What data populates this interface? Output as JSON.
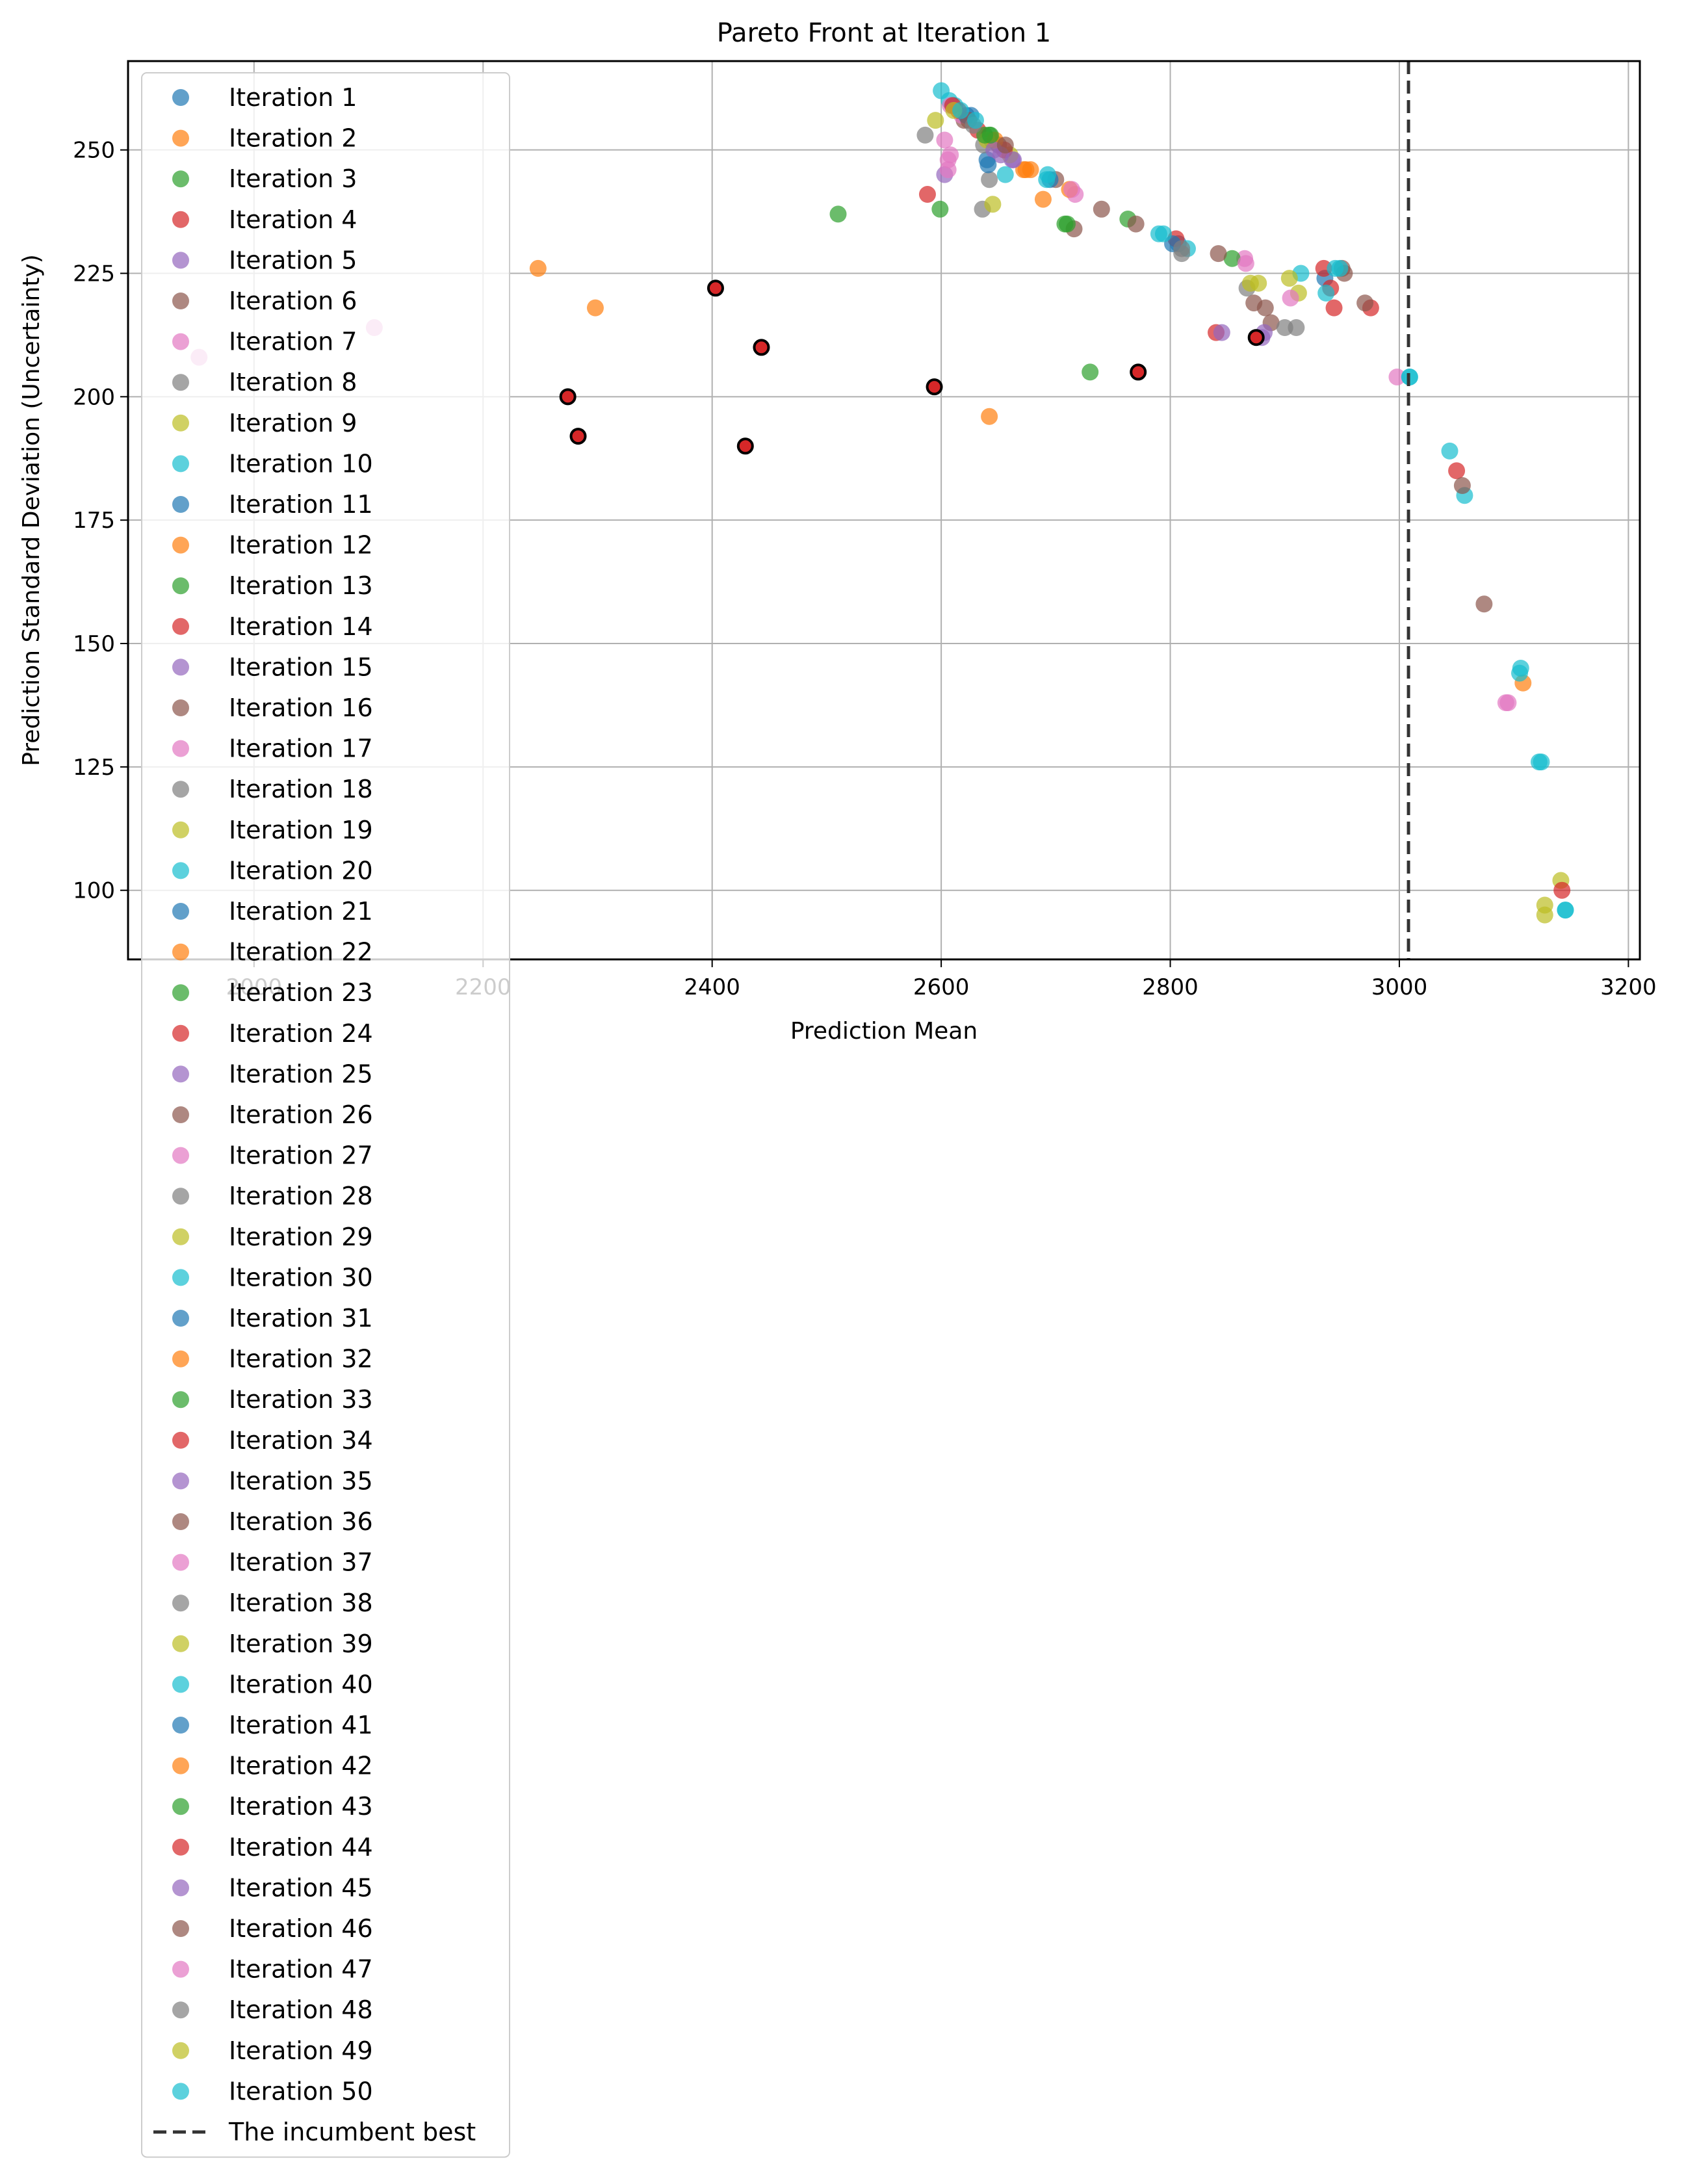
{
  "chart_data": {
    "type": "scatter",
    "title": "Pareto Front at Iteration 1",
    "xlabel": "Prediction Mean",
    "ylabel": "Prediction Standard Deviation (Uncertainty)",
    "xlim": [
      1890,
      3210
    ],
    "ylim": [
      86,
      268
    ],
    "xticks": [
      2000,
      2200,
      2400,
      2600,
      2800,
      3000,
      3200
    ],
    "yticks": [
      100,
      125,
      150,
      175,
      200,
      225,
      250
    ],
    "xtick_labels": [
      "2000",
      "2200",
      "2400",
      "2600",
      "2800",
      "3000",
      "3200"
    ],
    "ytick_labels": [
      "100",
      "125",
      "150",
      "175",
      "200",
      "225",
      "250"
    ],
    "grid": true,
    "legend_position": "upper-left",
    "incumbent_best": {
      "label": "The incumbent best",
      "x": 3008,
      "color": "#333333"
    },
    "palette": [
      "#1f77b4",
      "#ff7f0e",
      "#2ca02c",
      "#d62728",
      "#9467bd",
      "#8c564b",
      "#e377c2",
      "#7f7f7f",
      "#bcbd22",
      "#17becf"
    ],
    "highlight_points": [
      [
        2403,
        222
      ],
      [
        2443,
        210
      ],
      [
        2274,
        200
      ],
      [
        2283,
        192
      ],
      [
        2429,
        190
      ],
      [
        2594,
        202
      ],
      [
        2772,
        205
      ],
      [
        2875,
        212
      ]
    ],
    "series": [
      {
        "name": "Iteration 1",
        "points": [
          [
            2640,
            248
          ],
          [
            2807,
            231
          ],
          [
            2935,
            224
          ]
        ]
      },
      {
        "name": "Iteration 2",
        "points": [
          [
            2248,
            226
          ],
          [
            2298,
            218
          ],
          [
            2642,
            196
          ],
          [
            2672,
            246
          ],
          [
            2689,
            240
          ]
        ]
      },
      {
        "name": "Iteration 3",
        "points": [
          [
            2510,
            237
          ],
          [
            2599,
            238
          ],
          [
            2730,
            205
          ],
          [
            2763,
            236
          ],
          [
            2642,
            253
          ]
        ]
      },
      {
        "name": "Iteration 4",
        "points": [
          [
            2588,
            241
          ],
          [
            2940,
            222
          ],
          [
            2943,
            218
          ],
          [
            2975,
            218
          ],
          [
            2840,
            213
          ],
          [
            3050,
            185
          ]
        ]
      },
      {
        "name": "Iteration 5",
        "points": [
          [
            2603,
            245
          ],
          [
            2845,
            213
          ],
          [
            2880,
            212
          ],
          [
            2662,
            248
          ]
        ]
      },
      {
        "name": "Iteration 6",
        "points": [
          [
            2700,
            244
          ],
          [
            2716,
            234
          ],
          [
            2770,
            235
          ],
          [
            2873,
            219
          ],
          [
            2888,
            215
          ],
          [
            2952,
            225
          ],
          [
            3074,
            158
          ]
        ]
      },
      {
        "name": "Iteration 7",
        "points": [
          [
            1952,
            208
          ],
          [
            2105,
            214
          ],
          [
            2606,
            248
          ],
          [
            2717,
            241
          ],
          [
            2865,
            228
          ],
          [
            2998,
            204
          ],
          [
            3093,
            138
          ]
        ]
      },
      {
        "name": "Iteration 8",
        "points": [
          [
            2586,
            253
          ],
          [
            2636,
            238
          ],
          [
            2642,
            244
          ],
          [
            2867,
            222
          ],
          [
            2910,
            214
          ]
        ]
      },
      {
        "name": "Iteration 9",
        "points": [
          [
            2595,
            256
          ],
          [
            2645,
            239
          ],
          [
            2877,
            223
          ],
          [
            2912,
            221
          ],
          [
            3127,
            97
          ],
          [
            3141,
            102
          ]
        ]
      },
      {
        "name": "Iteration 10",
        "points": [
          [
            2600,
            262
          ],
          [
            2656,
            245
          ],
          [
            2790,
            233
          ],
          [
            2815,
            230
          ],
          [
            2914,
            225
          ],
          [
            3009,
            204
          ],
          [
            3057,
            180
          ],
          [
            3122,
            126
          ],
          [
            3145,
            96
          ]
        ]
      },
      {
        "name": "Iteration 11",
        "points": [
          [
            2626,
            257
          ],
          [
            2695,
            244
          ]
        ]
      },
      {
        "name": "Iteration 12",
        "points": [
          [
            2712,
            242
          ],
          [
            3108,
            142
          ]
        ]
      },
      {
        "name": "Iteration 13",
        "points": [
          [
            2854,
            228
          ],
          [
            2710,
            235
          ]
        ]
      },
      {
        "name": "Iteration 14",
        "points": [
          [
            2805,
            232
          ],
          [
            2934,
            226
          ],
          [
            3142,
            100
          ]
        ]
      },
      {
        "name": "Iteration 15",
        "points": [
          [
            2882,
            213
          ]
        ]
      },
      {
        "name": "Iteration 16",
        "points": [
          [
            2650,
            251
          ],
          [
            2740,
            238
          ],
          [
            2842,
            229
          ],
          [
            2883,
            218
          ],
          [
            2970,
            219
          ],
          [
            3055,
            182
          ]
        ]
      },
      {
        "name": "Iteration 17",
        "points": [
          [
            2603,
            252
          ],
          [
            2606,
            246
          ],
          [
            2866,
            227
          ],
          [
            2905,
            220
          ],
          [
            3095,
            138
          ]
        ]
      },
      {
        "name": "Iteration 18",
        "points": [
          [
            2810,
            229
          ],
          [
            2900,
            214
          ]
        ]
      },
      {
        "name": "Iteration 19",
        "points": [
          [
            2660,
            249
          ],
          [
            2870,
            223
          ],
          [
            3127,
            95
          ]
        ]
      },
      {
        "name": "Iteration 20",
        "points": [
          [
            2612,
            259
          ],
          [
            2692,
            244
          ],
          [
            2936,
            221
          ],
          [
            3044,
            189
          ],
          [
            3105,
            144
          ]
        ]
      },
      {
        "name": "Iteration 21",
        "points": [
          [
            2802,
            231
          ]
        ]
      },
      {
        "name": "Iteration 22",
        "points": [
          [
            2678,
            246
          ]
        ]
      },
      {
        "name": "Iteration 23",
        "points": [
          [
            2644,
            252
          ],
          [
            2708,
            235
          ]
        ]
      },
      {
        "name": "Iteration 24",
        "points": [
          [
            2632,
            254
          ],
          [
            2655,
            250
          ]
        ]
      },
      {
        "name": "Iteration 25",
        "points": [
          [
            2652,
            249
          ]
        ]
      },
      {
        "name": "Iteration 26",
        "points": [
          [
            2620,
            256
          ],
          [
            2950,
            226
          ]
        ]
      },
      {
        "name": "Iteration 27",
        "points": [
          [
            2618,
            257
          ],
          [
            2714,
            242
          ]
        ]
      },
      {
        "name": "Iteration 28",
        "points": [
          [
            2637,
            251
          ]
        ]
      },
      {
        "name": "Iteration 29",
        "points": [
          [
            2640,
            252
          ]
        ]
      },
      {
        "name": "Iteration 30",
        "points": [
          [
            2607,
            260
          ],
          [
            2944,
            226
          ],
          [
            2948,
            226
          ],
          [
            3106,
            145
          ]
        ]
      },
      {
        "name": "Iteration 31",
        "points": [
          [
            2622,
            257
          ]
        ]
      },
      {
        "name": "Iteration 32",
        "points": [
          [
            2647,
            252
          ]
        ]
      },
      {
        "name": "Iteration 33",
        "points": [
          [
            2638,
            253
          ]
        ]
      },
      {
        "name": "Iteration 34",
        "points": [
          [
            2615,
            258
          ]
        ]
      },
      {
        "name": "Iteration 35",
        "points": [
          [
            2646,
            250
          ]
        ]
      },
      {
        "name": "Iteration 36",
        "points": [
          [
            2624,
            256
          ]
        ]
      },
      {
        "name": "Iteration 37",
        "points": [
          [
            2608,
            259
          ]
        ]
      },
      {
        "name": "Iteration 38",
        "points": [
          [
            2628,
            255
          ]
        ]
      },
      {
        "name": "Iteration 39",
        "points": [
          [
            2904,
            224
          ]
        ]
      },
      {
        "name": "Iteration 40",
        "points": [
          [
            2630,
            256
          ],
          [
            2693,
            245
          ],
          [
            3009,
            204
          ],
          [
            3124,
            126
          ],
          [
            3145,
            96
          ]
        ]
      },
      {
        "name": "Iteration 41",
        "points": [
          [
            2641,
            247
          ]
        ]
      },
      {
        "name": "Iteration 42",
        "points": [
          [
            2674,
            246
          ]
        ]
      },
      {
        "name": "Iteration 43",
        "points": [
          [
            2643,
            253
          ]
        ]
      },
      {
        "name": "Iteration 44",
        "points": [
          [
            2610,
            259
          ]
        ]
      },
      {
        "name": "Iteration 45",
        "points": [
          [
            2663,
            248
          ]
        ]
      },
      {
        "name": "Iteration 46",
        "points": [
          [
            2656,
            251
          ]
        ]
      },
      {
        "name": "Iteration 47",
        "points": [
          [
            2608,
            249
          ]
        ]
      },
      {
        "name": "Iteration 48",
        "points": [
          [
            2810,
            230
          ]
        ]
      },
      {
        "name": "Iteration 49",
        "points": [
          [
            2611,
            258
          ]
        ]
      },
      {
        "name": "Iteration 50",
        "points": [
          [
            2617,
            258
          ],
          [
            2794,
            233
          ]
        ]
      }
    ]
  }
}
